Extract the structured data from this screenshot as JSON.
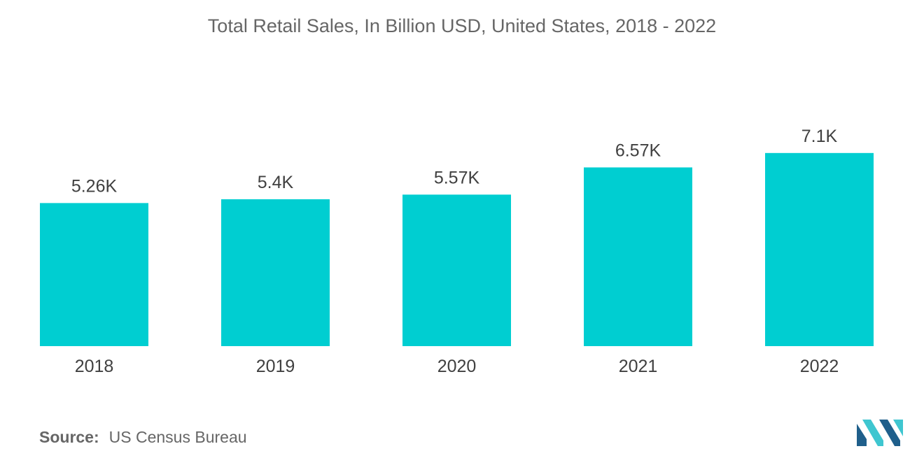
{
  "title": "Total Retail Sales, In Billion USD, United States, 2018 - 2022",
  "source": {
    "label": "Source:",
    "value": "US Census Bureau"
  },
  "colors": {
    "bar": "#00CED1",
    "logo_dark": "#1F5F8B",
    "logo_light": "#3FC6D0"
  },
  "chart_data": {
    "type": "bar",
    "title": "Total Retail Sales, In Billion USD, United States, 2018 - 2022",
    "categories": [
      "2018",
      "2019",
      "2020",
      "2021",
      "2022"
    ],
    "values": [
      5260,
      5400,
      5570,
      6570,
      7100
    ],
    "data_labels": [
      "5.26K",
      "5.4K",
      "5.57K",
      "6.57K",
      "7.1K"
    ],
    "ylim": [
      0,
      9000
    ],
    "grid": false,
    "legend": "none"
  }
}
